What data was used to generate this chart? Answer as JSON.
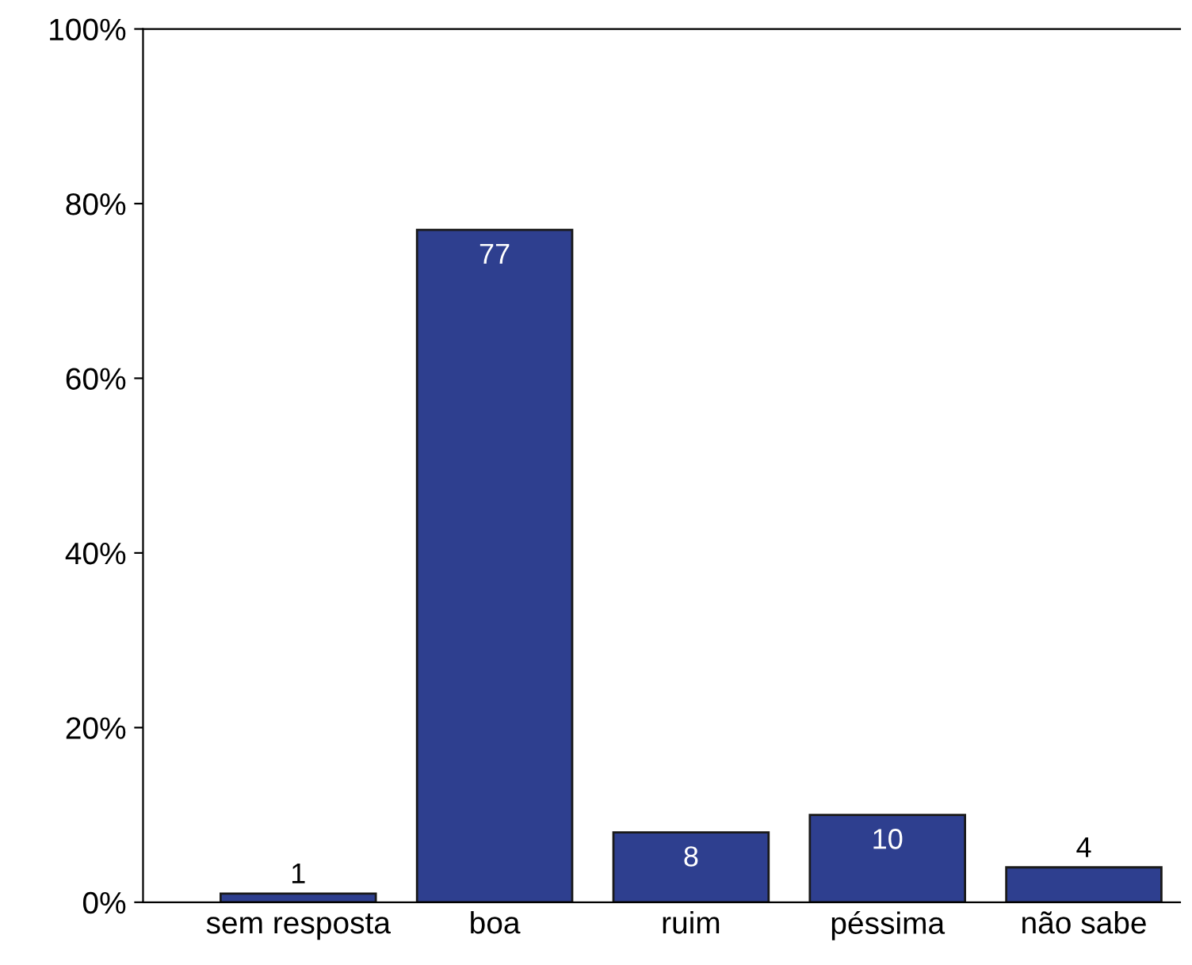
{
  "chart_data": {
    "type": "bar",
    "categories": [
      "sem resposta",
      "boa",
      "ruim",
      "péssima",
      "não sabe"
    ],
    "values": [
      1,
      77,
      8,
      10,
      4
    ],
    "color": "#2e3f8f",
    "data_labels": true,
    "grid": false,
    "legend": false,
    "ylim": [
      0,
      100
    ],
    "yticks": [
      {
        "value": 0,
        "label": "0%"
      },
      {
        "value": 20,
        "label": "20%"
      },
      {
        "value": 40,
        "label": "40%"
      },
      {
        "value": 60,
        "label": "60%"
      },
      {
        "value": 80,
        "label": "80%"
      },
      {
        "value": 100,
        "label": "100%"
      }
    ]
  }
}
